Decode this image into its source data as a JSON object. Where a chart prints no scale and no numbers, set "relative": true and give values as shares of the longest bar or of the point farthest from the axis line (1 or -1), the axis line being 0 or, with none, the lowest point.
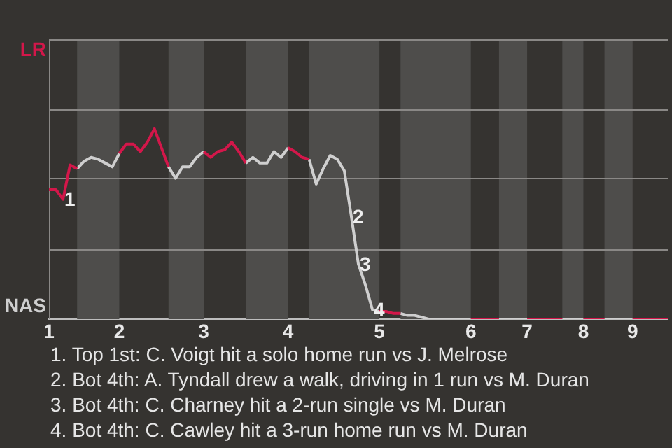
{
  "chart_data": {
    "type": "line",
    "relative": true,
    "marker": "none",
    "line_style": "solid",
    "ref_lines": [
      {
        "axis": "y",
        "value": 0.37,
        "color": "#8a8886"
      },
      {
        "axis": "y",
        "value": 0.74,
        "color": "#8a8886"
      },
      {
        "axis": "y",
        "value": 1.1,
        "color": "#8a8886"
      },
      {
        "axis": "y",
        "value": 1.47,
        "color": "#8a8886"
      }
    ],
    "categories": [
      "1",
      null,
      null,
      null,
      null,
      null,
      null,
      null,
      null,
      null,
      "2",
      null,
      null,
      null,
      null,
      null,
      null,
      null,
      null,
      null,
      null,
      null,
      "3",
      null,
      null,
      null,
      null,
      null,
      null,
      null,
      null,
      null,
      null,
      null,
      "4",
      null,
      null,
      null,
      null,
      null,
      null,
      null,
      null,
      null,
      null,
      null,
      null,
      "5",
      null,
      null,
      null,
      null,
      null,
      null,
      null,
      null,
      null,
      null,
      null,
      null,
      "6",
      null,
      null,
      null,
      null,
      null,
      null,
      null,
      "7",
      null,
      null,
      null,
      null,
      null,
      null,
      null,
      "8",
      null,
      null,
      null,
      null,
      null,
      null,
      "9",
      null,
      null,
      null,
      null,
      null
    ],
    "series": [
      {
        "name": "LR",
        "color": "#d3174a",
        "values": [
          0.68,
          0.68,
          0.63,
          0.81,
          0.79,
          null,
          null,
          null,
          null,
          null,
          0.87,
          0.92,
          0.92,
          0.88,
          0.93,
          1,
          0.9,
          0.8,
          null,
          null,
          null,
          null,
          0.88,
          0.85,
          0.88,
          0.89,
          0.93,
          0.88,
          0.82,
          null,
          null,
          null,
          null,
          null,
          0.9,
          0.88,
          0.85,
          0.84,
          null,
          null,
          null,
          null,
          null,
          null,
          null,
          null,
          null,
          0.04,
          0.04,
          0.03,
          0.03,
          null,
          null,
          null,
          null,
          null,
          null,
          null,
          null,
          null,
          0,
          0,
          0,
          0,
          0,
          null,
          null,
          null,
          0,
          0,
          0,
          0,
          0,
          0,
          null,
          null,
          0,
          0,
          0,
          0,
          null,
          null,
          null,
          0,
          0,
          0,
          0,
          0,
          0
        ]
      },
      {
        "name": "NAS",
        "color": "#cfcfcf",
        "values": [
          null,
          null,
          null,
          null,
          0.79,
          0.83,
          0.85,
          0.84,
          0.82,
          0.8,
          0.87,
          null,
          null,
          null,
          null,
          null,
          null,
          0.8,
          0.74,
          0.8,
          0.8,
          0.85,
          0.88,
          null,
          null,
          null,
          null,
          null,
          0.82,
          0.85,
          0.82,
          0.82,
          0.88,
          0.85,
          0.9,
          null,
          null,
          0.84,
          0.71,
          0.79,
          0.86,
          0.84,
          0.78,
          0.54,
          0.29,
          0.18,
          0.05,
          0.04,
          null,
          null,
          0.03,
          0.02,
          0.02,
          0.01,
          0,
          0,
          0,
          0,
          0,
          0,
          0,
          null,
          null,
          null,
          0,
          0,
          0,
          0,
          0,
          null,
          null,
          null,
          null,
          0,
          0,
          0,
          0,
          null,
          null,
          0,
          0,
          0,
          0,
          0,
          null,
          null,
          null,
          null,
          null
        ]
      }
    ],
    "annotations": [
      {
        "text": "1",
        "y": 0.63
      },
      {
        "text": "2",
        "y": 0.54
      },
      {
        "text": "3",
        "y": 0.29
      },
      {
        "text": "4",
        "y": 0.05
      },
      "1. Top 1st: C. Voigt hit a solo home run vs J. Melrose",
      "2. Bot 4th: A. Tyndall drew a walk, driving in 1 run vs M. Duran",
      "3. Bot 4th: C. Charney hit a 2-run single vs M. Duran",
      "4. Bot 4th: C. Cawley hit a 3-run home run vs M. Duran"
    ]
  }
}
